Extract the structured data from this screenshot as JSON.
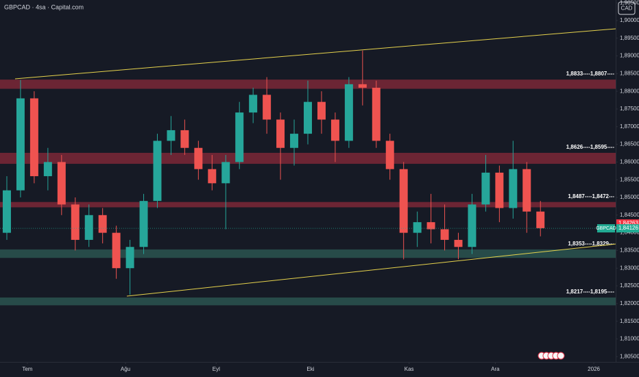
{
  "chart_data": {
    "type": "candlestick",
    "title": "GBPCAD · 4sa · Capital.com",
    "currency": "CAD",
    "x": [
      0,
      1,
      2,
      3,
      4,
      5,
      6,
      7,
      8,
      9,
      10,
      11,
      12,
      13,
      14,
      15,
      16,
      17,
      18,
      19,
      20,
      21,
      22,
      23,
      24,
      25,
      26,
      27,
      28,
      29,
      30,
      31,
      32,
      33,
      34,
      35,
      36,
      37,
      38,
      39
    ],
    "open": [
      1.84,
      1.852,
      1.878,
      1.856,
      1.86,
      1.848,
      1.838,
      1.845,
      1.84,
      1.83,
      1.836,
      1.849,
      1.866,
      1.869,
      1.864,
      1.858,
      1.854,
      1.86,
      1.874,
      1.879,
      1.872,
      1.864,
      1.868,
      1.877,
      1.872,
      1.866,
      1.882,
      1.881,
      1.866,
      1.858,
      1.84,
      1.843,
      1.841,
      1.838,
      1.836,
      1.848,
      1.857,
      1.847,
      1.858,
      1.846
    ],
    "high": [
      1.856,
      1.8832,
      1.88,
      1.864,
      1.862,
      1.85,
      1.848,
      1.847,
      1.842,
      1.838,
      1.851,
      1.868,
      1.873,
      1.872,
      1.866,
      1.862,
      1.862,
      1.877,
      1.881,
      1.884,
      1.874,
      1.872,
      1.883,
      1.88,
      1.874,
      1.884,
      1.8915,
      1.883,
      1.868,
      1.86,
      1.846,
      1.851,
      1.848,
      1.84,
      1.851,
      1.862,
      1.859,
      1.866,
      1.86,
      1.849
    ],
    "low": [
      1.838,
      1.85,
      1.854,
      1.852,
      1.845,
      1.835,
      1.836,
      1.837,
      1.827,
      1.8225,
      1.834,
      1.847,
      1.862,
      1.862,
      1.855,
      1.852,
      1.841,
      1.858,
      1.871,
      1.868,
      1.855,
      1.859,
      1.865,
      1.868,
      1.86,
      1.864,
      1.876,
      1.864,
      1.855,
      1.8325,
      1.836,
      1.837,
      1.835,
      1.8325,
      1.834,
      1.846,
      1.843,
      1.844,
      1.84,
      1.839
    ],
    "close": [
      1.852,
      1.878,
      1.856,
      1.86,
      1.848,
      1.838,
      1.845,
      1.84,
      1.83,
      1.836,
      1.849,
      1.866,
      1.869,
      1.864,
      1.858,
      1.854,
      1.86,
      1.874,
      1.879,
      1.872,
      1.864,
      1.868,
      1.877,
      1.872,
      1.866,
      1.882,
      1.881,
      1.866,
      1.858,
      1.84,
      1.843,
      1.841,
      1.838,
      1.836,
      1.848,
      1.857,
      1.847,
      1.858,
      1.846,
      1.8413
    ],
    "up_color": "#26a69a",
    "down_color": "#ef5350",
    "xlim": [
      -0.5,
      44.5
    ],
    "ylim": [
      1.8035,
      1.9058
    ],
    "xticks": [
      {
        "value": 1.5,
        "label": "Tem"
      },
      {
        "value": 8.67,
        "label": "Ağu"
      },
      {
        "value": 15.3,
        "label": "Eyl"
      },
      {
        "value": 22.2,
        "label": "Eki"
      },
      {
        "value": 29.4,
        "label": "Kas"
      },
      {
        "value": 35.7,
        "label": "Ara"
      },
      {
        "value": 42.9,
        "label": "2026"
      }
    ],
    "yticks": [
      {
        "value": 1.905,
        "label": "1,90500"
      },
      {
        "value": 1.9,
        "label": "1,90000"
      },
      {
        "value": 1.895,
        "label": "1,89500"
      },
      {
        "value": 1.89,
        "label": "1,89000"
      },
      {
        "value": 1.885,
        "label": "1,88500"
      },
      {
        "value": 1.88,
        "label": "1,88000"
      },
      {
        "value": 1.875,
        "label": "1,87500"
      },
      {
        "value": 1.87,
        "label": "1,87000"
      },
      {
        "value": 1.865,
        "label": "1,86500"
      },
      {
        "value": 1.86,
        "label": "1,86000"
      },
      {
        "value": 1.855,
        "label": "1,85500"
      },
      {
        "value": 1.85,
        "label": "1,85000"
      },
      {
        "value": 1.845,
        "label": "1,84500"
      },
      {
        "value": 1.84,
        "label": "1,84000"
      },
      {
        "value": 1.835,
        "label": "1,83500"
      },
      {
        "value": 1.83,
        "label": "1,83000"
      },
      {
        "value": 1.825,
        "label": "1,82500"
      },
      {
        "value": 1.82,
        "label": "1,82000"
      },
      {
        "value": 1.815,
        "label": "1,81500"
      },
      {
        "value": 1.81,
        "label": "1,81000"
      },
      {
        "value": 1.805,
        "label": "1,80500"
      }
    ],
    "zones": [
      {
        "high": 1.8833,
        "low": 1.8807,
        "label": "1,8833----1,8807----",
        "color": "#8a2a3a"
      },
      {
        "high": 1.8626,
        "low": 1.8595,
        "label": "1,8626----1,8595----",
        "color": "#8a2a3a"
      },
      {
        "high": 1.8487,
        "low": 1.8472,
        "label": "1,8487----1,8472---",
        "color": "#8a2a3a"
      },
      {
        "high": 1.8353,
        "low": 1.8329,
        "label": "1,8353----1,8329---",
        "color": "#2e5c55"
      },
      {
        "high": 1.8217,
        "low": 1.8195,
        "label": "1,8217----1,8195----",
        "color": "#2e5c55"
      }
    ],
    "trendlines": [
      {
        "x": [
          0.6,
          44.5
        ],
        "y": [
          1.88353,
          1.89767
        ],
        "color": "#e8d44d"
      },
      {
        "x": [
          8.77,
          44.5
        ],
        "y": [
          1.82209,
          1.83682
        ],
        "color": "#e8d44d"
      }
    ],
    "symbol": "GBPCAD",
    "price_tags": [
      {
        "value": 1.84263,
        "label": "1,84263",
        "color": "#f23645"
      },
      {
        "value": 1.84126,
        "label": "1,84126",
        "color": "#22ab94"
      }
    ]
  }
}
